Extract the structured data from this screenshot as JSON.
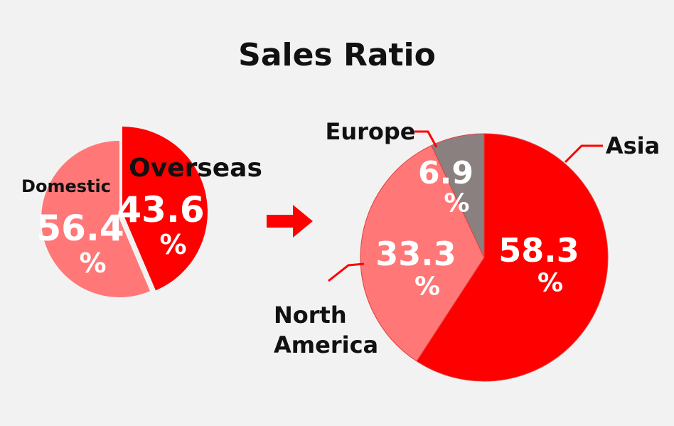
{
  "title": "Sales Ratio",
  "colors": {
    "background": "#f2f2f2",
    "red": "#ff0000",
    "light_red": "#ff7777",
    "gray": "#8a8080",
    "dark": "#111111",
    "white": "#ffffff"
  },
  "chart_data": [
    {
      "type": "pie",
      "title": "",
      "unit": "%",
      "slices": [
        {
          "label": "Domestic",
          "value": 56.4,
          "color": "#ff7777"
        },
        {
          "label": "Overseas",
          "value": 43.6,
          "color": "#ff0000",
          "exploded": true
        }
      ]
    },
    {
      "type": "pie",
      "title": "",
      "unit": "%",
      "slices": [
        {
          "label": "Asia",
          "value": 58.3,
          "color": "#ff0000"
        },
        {
          "label": "North America",
          "value": 33.3,
          "color": "#ff7777"
        },
        {
          "label": "Europe",
          "value": 6.9,
          "color": "#8a8080"
        }
      ]
    }
  ],
  "arrow": {
    "icon": "right-arrow-icon"
  }
}
